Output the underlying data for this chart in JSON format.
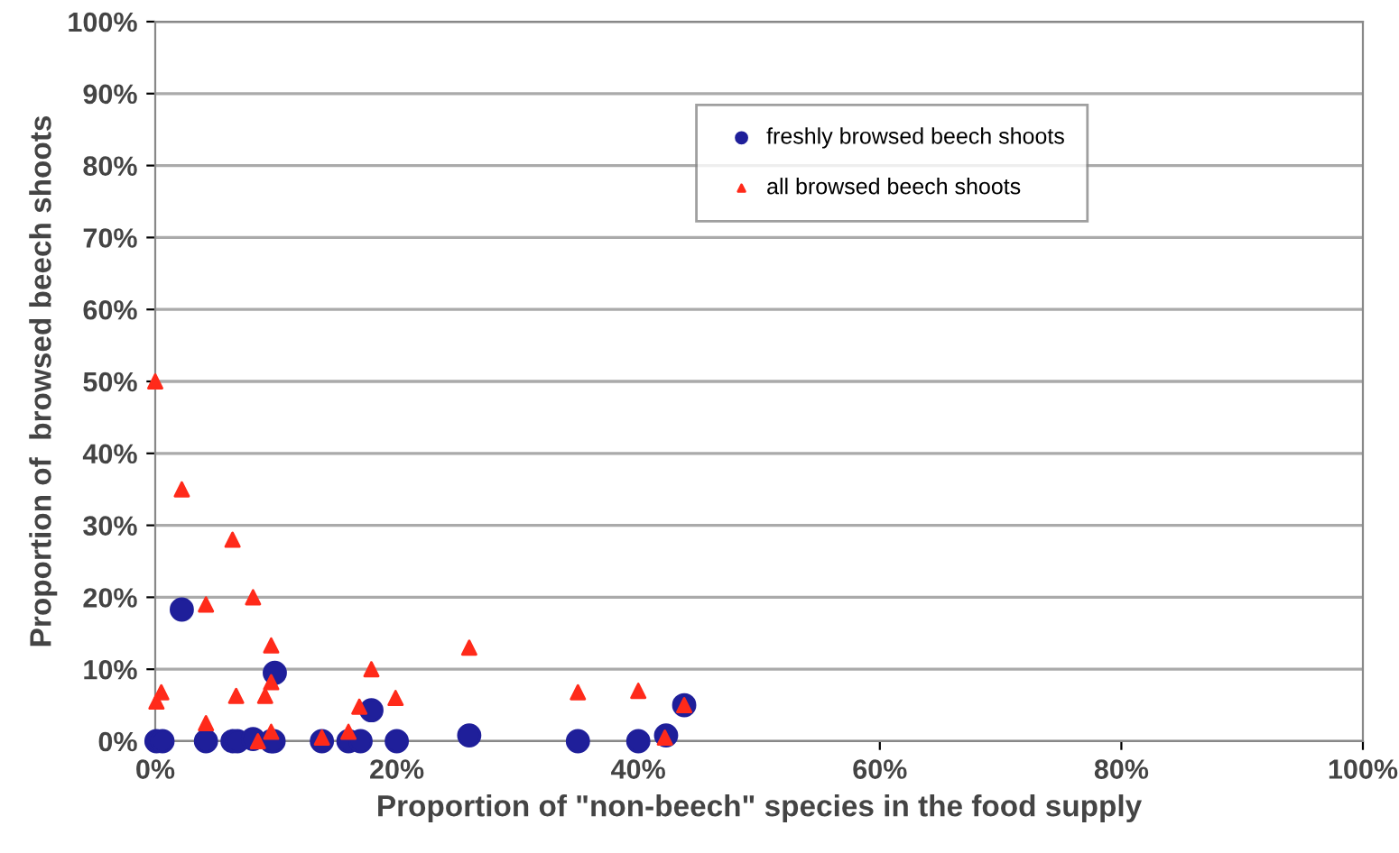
{
  "chart_data": {
    "type": "scatter",
    "xlabel": "Proportion of \"non-beech\" species in the food supply",
    "ylabel": "Proportion of  browsed beech shoots",
    "xlim": [
      0,
      100
    ],
    "ylim": [
      0,
      100
    ],
    "xticks": [
      {
        "value": 0,
        "label": "0%"
      },
      {
        "value": 20,
        "label": "20%"
      },
      {
        "value": 40,
        "label": "40%"
      },
      {
        "value": 60,
        "label": "60%"
      },
      {
        "value": 80,
        "label": "80%"
      },
      {
        "value": 100,
        "label": "100%"
      }
    ],
    "yticks": [
      {
        "value": 0,
        "label": "0%"
      },
      {
        "value": 10,
        "label": "10%"
      },
      {
        "value": 20,
        "label": "20%"
      },
      {
        "value": 30,
        "label": "30%"
      },
      {
        "value": 40,
        "label": "40%"
      },
      {
        "value": 50,
        "label": "50%"
      },
      {
        "value": 60,
        "label": "60%"
      },
      {
        "value": 70,
        "label": "70%"
      },
      {
        "value": 80,
        "label": "80%"
      },
      {
        "value": 90,
        "label": "90%"
      },
      {
        "value": 100,
        "label": "100%"
      }
    ],
    "grid": "y",
    "legend": "top",
    "series": [
      {
        "name": "freshly browsed beech shoots",
        "color": "#1f1f9a",
        "marker": "circle",
        "x": [
          0.1,
          0.6,
          2.2,
          4.2,
          6.4,
          6.8,
          8.1,
          9.6,
          9.9,
          9.8,
          13.8,
          16,
          17,
          17.9,
          20,
          26,
          35,
          40,
          42.3,
          43.8
        ],
        "values": [
          0,
          0,
          18.3,
          0,
          0,
          0,
          0.3,
          0,
          9.5,
          0,
          0,
          0,
          0,
          4.3,
          0,
          0.8,
          0,
          0,
          0.8,
          5
        ]
      },
      {
        "name": "all browsed beech shoots",
        "color": "#ff2a1a",
        "marker": "triangle",
        "x": [
          0,
          0.1,
          0.5,
          2.2,
          4.2,
          4.2,
          6.4,
          6.7,
          8.1,
          8.5,
          9.1,
          9.6,
          9.6,
          9.6,
          13.8,
          16,
          16.9,
          17.9,
          19.9,
          26,
          35,
          40,
          42.2,
          43.8
        ],
        "values": [
          50,
          5.5,
          6.8,
          35,
          19,
          2.5,
          28,
          6.3,
          20,
          0,
          6.3,
          8.2,
          13.3,
          1.3,
          0.5,
          1.3,
          4.8,
          10,
          6,
          13,
          6.8,
          7,
          0.5,
          5
        ]
      }
    ]
  }
}
